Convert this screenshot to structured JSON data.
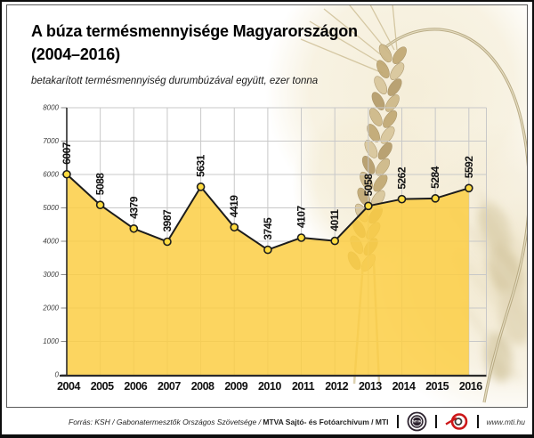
{
  "title": {
    "line1": "A búza termésmennyisége Magyarországon",
    "line2": "(2004–2016)"
  },
  "subtitle": "betakarított termésmennyiség durumbúzával együtt, ezer tonna",
  "chart_data": {
    "type": "area",
    "categories": [
      "2004",
      "2005",
      "2006",
      "2007",
      "2008",
      "2009",
      "2010",
      "2011",
      "2012",
      "2013",
      "2014",
      "2015",
      "2016"
    ],
    "values": [
      6007,
      5088,
      4379,
      3987,
      5631,
      4419,
      3745,
      4107,
      4011,
      5058,
      5262,
      5284,
      5592
    ],
    "title": "A búza termésmennyisége Magyarországon (2004–2016)",
    "subtitle": "betakarított termésmennyiség durumbúzával együtt, ezer tonna",
    "xlabel": "",
    "ylabel": "ezer tonna",
    "ylim": [
      0,
      8000
    ],
    "ytick_step": 1000,
    "grid": true,
    "legend": "none",
    "colors": {
      "area_fill": "#FBCE44",
      "line": "#1c1c1c",
      "marker_fill": "#FFDB40",
      "marker_stroke": "#1c1c1c",
      "gridline": "#c8c8c8",
      "axis": "#2b2b2b"
    }
  },
  "footer": {
    "source_regular": "Forrás: KSH / Gabonatermesztők Országos Szövetsége / ",
    "source_bold": "MTVA Sajtó- és Fotóarchívum / MTI",
    "website": "www.mti.hu",
    "mtva_logo_text": "MTVA"
  }
}
